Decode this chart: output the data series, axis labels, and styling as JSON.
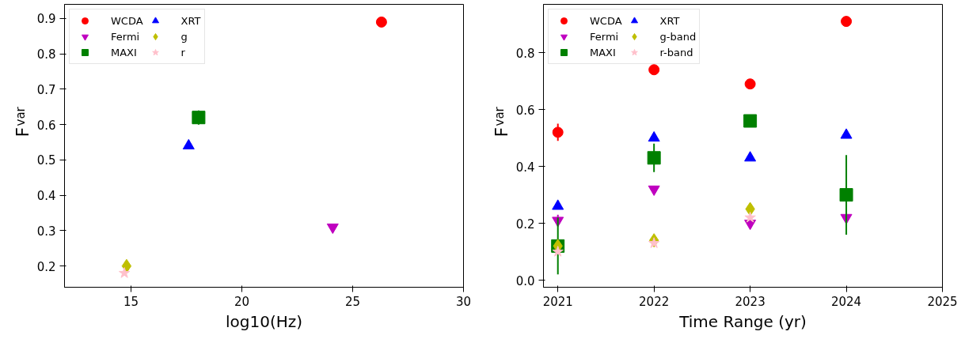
{
  "chart_data": [
    {
      "type": "scatter",
      "xlabel": "log10(Hz)",
      "ylabel": "F$_{var}$",
      "xlim": [
        12,
        30
      ],
      "xticks": [
        15,
        20,
        25,
        30
      ],
      "ylim": [
        0.14,
        0.94
      ],
      "yticks": [
        0.2,
        0.3,
        0.4,
        0.5,
        0.6,
        0.7,
        0.8,
        0.9
      ],
      "legend": "top left",
      "grid": false,
      "series": [
        {
          "name": "WCDA",
          "color": "#ff0000",
          "marker": "circle",
          "x": [
            26.3
          ],
          "values": [
            0.89
          ]
        },
        {
          "name": "Fermi",
          "color": "#bf00bf",
          "marker": "triangle",
          "x": [
            24.1
          ],
          "values": [
            0.31
          ]
        },
        {
          "name": "MAXI",
          "color": "#008000",
          "marker": "square",
          "x": [
            18.05
          ],
          "values": [
            0.62
          ],
          "errors": [
            0.02
          ]
        },
        {
          "name": "XRT",
          "color": "#0000ff",
          "marker": "triangle",
          "x": [
            17.6
          ],
          "values": [
            0.54
          ]
        },
        {
          "name": "g",
          "color": "#bfbf00",
          "marker": "diamond",
          "x": [
            14.8
          ],
          "values": [
            0.2
          ]
        },
        {
          "name": "r",
          "color": "#ffc0cb",
          "marker": "star",
          "x": [
            14.7
          ],
          "values": [
            0.18
          ]
        }
      ]
    },
    {
      "type": "scatter",
      "xlabel": "Time Range (yr)",
      "ylabel": "F$_{var}$",
      "xlim": [
        2020.85,
        2025
      ],
      "xticks": [
        2021,
        2022,
        2023,
        2024,
        2025
      ],
      "ylim": [
        -0.025,
        0.97
      ],
      "yticks": [
        {
          "value": 0,
          "label": "0.0"
        },
        0.2,
        0.4,
        0.6,
        0.8
      ],
      "legend": "top left",
      "grid": false,
      "series": [
        {
          "name": "WCDA",
          "color": "#ff0000",
          "marker": "circle",
          "x": [
            2021,
            2022,
            2023,
            2024
          ],
          "values": [
            0.52,
            0.74,
            0.69,
            0.91
          ],
          "errors": [
            0.03,
            0.01,
            0.01,
            0.015
          ]
        },
        {
          "name": "Fermi",
          "color": "#bf00bf",
          "marker": "triangle",
          "x": [
            2021,
            2022,
            2023,
            2024
          ],
          "values": [
            0.21,
            0.32,
            0.2,
            0.22
          ],
          "errors": [
            0.02,
            0.01,
            0.01,
            0.01
          ]
        },
        {
          "name": "MAXI",
          "color": "#008000",
          "marker": "square",
          "x": [
            2021,
            2022,
            2023,
            2024
          ],
          "values": [
            0.12,
            0.43,
            0.56,
            0.3
          ],
          "errors": [
            0.1,
            0.05,
            0.015,
            0.14
          ]
        },
        {
          "name": "XRT",
          "color": "#0000ff",
          "marker": "triangle",
          "x": [
            2021,
            2022,
            2023,
            2024
          ],
          "values": [
            0.26,
            0.5,
            0.43,
            0.51
          ]
        },
        {
          "name": "g-band",
          "color": "#bfbf00",
          "marker": "diamond",
          "x": [
            2021,
            2022,
            2023
          ],
          "values": [
            0.12,
            0.14,
            0.25
          ]
        },
        {
          "name": "r-band",
          "color": "#ffc0cb",
          "marker": "star",
          "x": [
            2021,
            2022,
            2023
          ],
          "values": [
            0.1,
            0.13,
            0.22
          ]
        }
      ]
    }
  ]
}
